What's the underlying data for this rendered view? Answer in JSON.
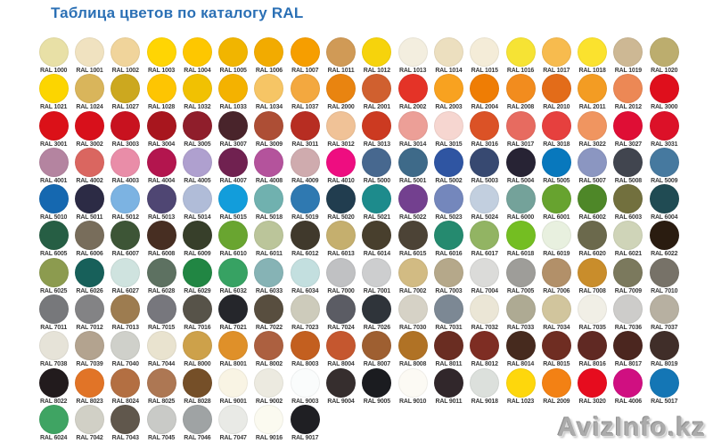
{
  "header": {
    "title": "Таблица цветов по каталогу RAL"
  },
  "watermark": {
    "text": "AvizInfo.kz"
  },
  "accent_color": "#2b70b5",
  "chart_data": {
    "type": "table",
    "title": "Таблица цветов по каталогу RAL",
    "layout": {
      "columns_per_row": 18,
      "rows": 11,
      "last_row_items": 8
    },
    "rows": [
      [
        {
          "code": "RAL 1000",
          "hex": "#e8e0a6"
        },
        {
          "code": "RAL 1001",
          "hex": "#f0e2c0"
        },
        {
          "code": "RAL 1002",
          "hex": "#f0d49b"
        },
        {
          "code": "RAL 1003",
          "hex": "#ffd503"
        },
        {
          "code": "RAL 1004",
          "hex": "#fec700"
        },
        {
          "code": "RAL 1005",
          "hex": "#f1b500"
        },
        {
          "code": "RAL 1006",
          "hex": "#f2ab00"
        },
        {
          "code": "RAL 1007",
          "hex": "#f69e00"
        },
        {
          "code": "RAL 1011",
          "hex": "#d09a56"
        },
        {
          "code": "RAL 1012",
          "hex": "#f6d30c"
        },
        {
          "code": "RAL 1013",
          "hex": "#f3eedf"
        },
        {
          "code": "RAL 1014",
          "hex": "#ecdfbf"
        },
        {
          "code": "RAL 1015",
          "hex": "#f4ecd8"
        },
        {
          "code": "RAL 1016",
          "hex": "#f6e334"
        },
        {
          "code": "RAL 1017",
          "hex": "#f7bb4e"
        },
        {
          "code": "RAL 1018",
          "hex": "#fbe22e"
        },
        {
          "code": "RAL 1019",
          "hex": "#cdb894"
        },
        {
          "code": "RAL 1020",
          "hex": "#bcad6e"
        }
      ],
      [
        {
          "code": "RAL 1021",
          "hex": "#fcd500"
        },
        {
          "code": "RAL 1024",
          "hex": "#d9b55b"
        },
        {
          "code": "RAL 1027",
          "hex": "#cca81f"
        },
        {
          "code": "RAL 1028",
          "hex": "#fec502"
        },
        {
          "code": "RAL 1032",
          "hex": "#f1c102"
        },
        {
          "code": "RAL 1033",
          "hex": "#f4b200"
        },
        {
          "code": "RAL 1034",
          "hex": "#f6c565"
        },
        {
          "code": "RAL 1037",
          "hex": "#f3a83f"
        },
        {
          "code": "RAL 2000",
          "hex": "#e98410"
        },
        {
          "code": "RAL 2001",
          "hex": "#d0602f"
        },
        {
          "code": "RAL 2002",
          "hex": "#e43327"
        },
        {
          "code": "RAL 2003",
          "hex": "#f8a220"
        },
        {
          "code": "RAL 2004",
          "hex": "#ef7d04"
        },
        {
          "code": "RAL 2008",
          "hex": "#f28c1e"
        },
        {
          "code": "RAL 2010",
          "hex": "#e36c19"
        },
        {
          "code": "RAL 2011",
          "hex": "#f39c23"
        },
        {
          "code": "RAL 2012",
          "hex": "#ec8855"
        },
        {
          "code": "RAL 3000",
          "hex": "#df0f1c"
        }
      ],
      [
        {
          "code": "RAL 3001",
          "hex": "#db1118"
        },
        {
          "code": "RAL 3002",
          "hex": "#d8101b"
        },
        {
          "code": "RAL 3003",
          "hex": "#c8121f"
        },
        {
          "code": "RAL 3004",
          "hex": "#a8161e"
        },
        {
          "code": "RAL 3005",
          "hex": "#8f1e2b"
        },
        {
          "code": "RAL 3007",
          "hex": "#49242b"
        },
        {
          "code": "RAL 3009",
          "hex": "#ad4e35"
        },
        {
          "code": "RAL 3011",
          "hex": "#b72d22"
        },
        {
          "code": "RAL 3012",
          "hex": "#f0c297"
        },
        {
          "code": "RAL 3013",
          "hex": "#cc3a21"
        },
        {
          "code": "RAL 3014",
          "hex": "#ec9f97"
        },
        {
          "code": "RAL 3015",
          "hex": "#f6d6d0"
        },
        {
          "code": "RAL 3016",
          "hex": "#db5226"
        },
        {
          "code": "RAL 3017",
          "hex": "#e76b60"
        },
        {
          "code": "RAL 3018",
          "hex": "#e6403e"
        },
        {
          "code": "RAL 3022",
          "hex": "#f09560"
        },
        {
          "code": "RAL 3027",
          "hex": "#df0e35"
        },
        {
          "code": "RAL 3031",
          "hex": "#dc1128"
        }
      ],
      [
        {
          "code": "RAL 4001",
          "hex": "#b484a0"
        },
        {
          "code": "RAL 4002",
          "hex": "#da6660"
        },
        {
          "code": "RAL 4003",
          "hex": "#e98da8"
        },
        {
          "code": "RAL 4004",
          "hex": "#b3154e"
        },
        {
          "code": "RAL 4005",
          "hex": "#afa0cf"
        },
        {
          "code": "RAL 4007",
          "hex": "#702150"
        },
        {
          "code": "RAL 4008",
          "hex": "#b4539c"
        },
        {
          "code": "RAL 4009",
          "hex": "#cfabae"
        },
        {
          "code": "RAL 4010",
          "hex": "#ee0d80"
        },
        {
          "code": "RAL 5000",
          "hex": "#47688f"
        },
        {
          "code": "RAL 5001",
          "hex": "#3e6a89"
        },
        {
          "code": "RAL 5002",
          "hex": "#2f55a2"
        },
        {
          "code": "RAL 5003",
          "hex": "#374971"
        },
        {
          "code": "RAL 5004",
          "hex": "#272334"
        },
        {
          "code": "RAL 5005",
          "hex": "#0878bd"
        },
        {
          "code": "RAL 5007",
          "hex": "#8b96c1"
        },
        {
          "code": "RAL 5008",
          "hex": "#41454f"
        },
        {
          "code": "RAL 5009",
          "hex": "#46799f"
        }
      ],
      [
        {
          "code": "RAL 5010",
          "hex": "#1568b0"
        },
        {
          "code": "RAL 5011",
          "hex": "#2c2b45"
        },
        {
          "code": "RAL 5012",
          "hex": "#7cb3e2"
        },
        {
          "code": "RAL 5013",
          "hex": "#4f4673"
        },
        {
          "code": "RAL 5014",
          "hex": "#b0bcd8"
        },
        {
          "code": "RAL 5015",
          "hex": "#129ddb"
        },
        {
          "code": "RAL 5018",
          "hex": "#70b1af"
        },
        {
          "code": "RAL 5019",
          "hex": "#2f79b1"
        },
        {
          "code": "RAL 5020",
          "hex": "#213d4f"
        },
        {
          "code": "RAL 5021",
          "hex": "#1d8b8c"
        },
        {
          "code": "RAL 5022",
          "hex": "#73408f"
        },
        {
          "code": "RAL 5023",
          "hex": "#7487bc"
        },
        {
          "code": "RAL 5024",
          "hex": "#c2cfdf"
        },
        {
          "code": "RAL 6000",
          "hex": "#74a29a"
        },
        {
          "code": "RAL 6001",
          "hex": "#67a32f"
        },
        {
          "code": "RAL 6002",
          "hex": "#4e8728"
        },
        {
          "code": "RAL 6003",
          "hex": "#72703e"
        },
        {
          "code": "RAL 6004",
          "hex": "#204b53"
        }
      ],
      [
        {
          "code": "RAL 6005",
          "hex": "#265e44"
        },
        {
          "code": "RAL 6006",
          "hex": "#786d5b"
        },
        {
          "code": "RAL 6007",
          "hex": "#3d5536"
        },
        {
          "code": "RAL 6008",
          "hex": "#472e22"
        },
        {
          "code": "RAL 6009",
          "hex": "#373f2a"
        },
        {
          "code": "RAL 6010",
          "hex": "#69a530"
        },
        {
          "code": "RAL 6011",
          "hex": "#bbc59a"
        },
        {
          "code": "RAL 6012",
          "hex": "#40392c"
        },
        {
          "code": "RAL 6013",
          "hex": "#c5af6e"
        },
        {
          "code": "RAL 6014",
          "hex": "#483f2d"
        },
        {
          "code": "RAL 6015",
          "hex": "#4c4336"
        },
        {
          "code": "RAL 6016",
          "hex": "#258a6f"
        },
        {
          "code": "RAL 6017",
          "hex": "#92b463"
        },
        {
          "code": "RAL 6018",
          "hex": "#74be22"
        },
        {
          "code": "RAL 6019",
          "hex": "#e8f0df"
        },
        {
          "code": "RAL 6020",
          "hex": "#6b694c"
        },
        {
          "code": "RAL 6021",
          "hex": "#cfd4b8"
        },
        {
          "code": "RAL 6022",
          "hex": "#2a1c10"
        }
      ],
      [
        {
          "code": "RAL 6025",
          "hex": "#8c9b4f"
        },
        {
          "code": "RAL 6026",
          "hex": "#17605a"
        },
        {
          "code": "RAL 6027",
          "hex": "#cfe3df"
        },
        {
          "code": "RAL 6028",
          "hex": "#5d7161"
        },
        {
          "code": "RAL 6029",
          "hex": "#218643"
        },
        {
          "code": "RAL 6032",
          "hex": "#37a263"
        },
        {
          "code": "RAL 6033",
          "hex": "#86b3b5"
        },
        {
          "code": "RAL 6034",
          "hex": "#c3dfdf"
        },
        {
          "code": "RAL 7000",
          "hex": "#c0c1c3"
        },
        {
          "code": "RAL 7001",
          "hex": "#cdcecf"
        },
        {
          "code": "RAL 7002",
          "hex": "#d2bb83"
        },
        {
          "code": "RAL 7003",
          "hex": "#b5a88a"
        },
        {
          "code": "RAL 7004",
          "hex": "#dbdbd9"
        },
        {
          "code": "RAL 7005",
          "hex": "#9e9d99"
        },
        {
          "code": "RAL 7006",
          "hex": "#b29069"
        },
        {
          "code": "RAL 7008",
          "hex": "#c98d2b"
        },
        {
          "code": "RAL 7009",
          "hex": "#7b795d"
        },
        {
          "code": "RAL 7010",
          "hex": "#777268"
        }
      ],
      [
        {
          "code": "RAL 7011",
          "hex": "#77787b"
        },
        {
          "code": "RAL 7012",
          "hex": "#838385"
        },
        {
          "code": "RAL 7013",
          "hex": "#9d7c50"
        },
        {
          "code": "RAL 7015",
          "hex": "#77777d"
        },
        {
          "code": "RAL 7016",
          "hex": "#575349"
        },
        {
          "code": "RAL 7021",
          "hex": "#25262b"
        },
        {
          "code": "RAL 7022",
          "hex": "#584e3f"
        },
        {
          "code": "RAL 7023",
          "hex": "#cdcbbb"
        },
        {
          "code": "RAL 7024",
          "hex": "#5b5c64"
        },
        {
          "code": "RAL 7026",
          "hex": "#2f343a"
        },
        {
          "code": "RAL 7030",
          "hex": "#d6d2c6"
        },
        {
          "code": "RAL 7031",
          "hex": "#7c8894"
        },
        {
          "code": "RAL 7032",
          "hex": "#ebe6d6"
        },
        {
          "code": "RAL 7033",
          "hex": "#aeaa93"
        },
        {
          "code": "RAL 7034",
          "hex": "#d1c59d"
        },
        {
          "code": "RAL 7035",
          "hex": "#f1efe6"
        },
        {
          "code": "RAL 7036",
          "hex": "#cdccca"
        },
        {
          "code": "RAL 7037",
          "hex": "#b7b0a1"
        }
      ],
      [
        {
          "code": "RAL 7038",
          "hex": "#e6e3d8"
        },
        {
          "code": "RAL 7039",
          "hex": "#b3a38f"
        },
        {
          "code": "RAL 7040",
          "hex": "#cfd0ca"
        },
        {
          "code": "RAL 7044",
          "hex": "#e9e3cf"
        },
        {
          "code": "RAL 8000",
          "hex": "#cda14a"
        },
        {
          "code": "RAL 8001",
          "hex": "#df9029"
        },
        {
          "code": "RAL 8002",
          "hex": "#ac6040"
        },
        {
          "code": "RAL 8003",
          "hex": "#c35f1f"
        },
        {
          "code": "RAL 8004",
          "hex": "#c5572f"
        },
        {
          "code": "RAL 8007",
          "hex": "#9e5f31"
        },
        {
          "code": "RAL 8008",
          "hex": "#b07225"
        },
        {
          "code": "RAL 8011",
          "hex": "#6a2d22"
        },
        {
          "code": "RAL 8012",
          "hex": "#7e2d23"
        },
        {
          "code": "RAL 8014",
          "hex": "#462a1e"
        },
        {
          "code": "RAL 8015",
          "hex": "#6f2d22"
        },
        {
          "code": "RAL 8016",
          "hex": "#602923"
        },
        {
          "code": "RAL 8017",
          "hex": "#4b261f"
        },
        {
          "code": "RAL 8019",
          "hex": "#402e29"
        }
      ],
      [
        {
          "code": "RAL 8022",
          "hex": "#221b1d"
        },
        {
          "code": "RAL 8023",
          "hex": "#e17427"
        },
        {
          "code": "RAL 8024",
          "hex": "#b36f42"
        },
        {
          "code": "RAL 8025",
          "hex": "#ad7753"
        },
        {
          "code": "RAL 8028",
          "hex": "#754f28"
        },
        {
          "code": "RAL 9001",
          "hex": "#f9f4e4"
        },
        {
          "code": "RAL 9002",
          "hex": "#eceae0"
        },
        {
          "code": "RAL 9003",
          "hex": "#fafcfc"
        },
        {
          "code": "RAL 9004",
          "hex": "#362e2e"
        },
        {
          "code": "RAL 9005",
          "hex": "#1b1c20"
        },
        {
          "code": "RAL 9010",
          "hex": "#fcfaf4"
        },
        {
          "code": "RAL 9011",
          "hex": "#31272b"
        },
        {
          "code": "RAL 9018",
          "hex": "#dce0dc"
        },
        {
          "code": "RAL 1023",
          "hex": "#fed70c"
        },
        {
          "code": "RAL 2009",
          "hex": "#f38114"
        },
        {
          "code": "RAL 3020",
          "hex": "#e60c1e"
        },
        {
          "code": "RAL 4006",
          "hex": "#d00f81"
        },
        {
          "code": "RAL 5017",
          "hex": "#1476b5"
        }
      ],
      [
        {
          "code": "RAL 6024",
          "hex": "#3fa463"
        },
        {
          "code": "RAL 7042",
          "hex": "#d1d0c6"
        },
        {
          "code": "RAL 7043",
          "hex": "#60574c"
        },
        {
          "code": "RAL 7045",
          "hex": "#c9cac7"
        },
        {
          "code": "RAL 7046",
          "hex": "#9fa3a4"
        },
        {
          "code": "RAL 7047",
          "hex": "#e9eae6"
        },
        {
          "code": "RAL 9016",
          "hex": "#fbfaf0"
        },
        {
          "code": "RAL 9017",
          "hex": "#1f1f23"
        }
      ]
    ]
  }
}
